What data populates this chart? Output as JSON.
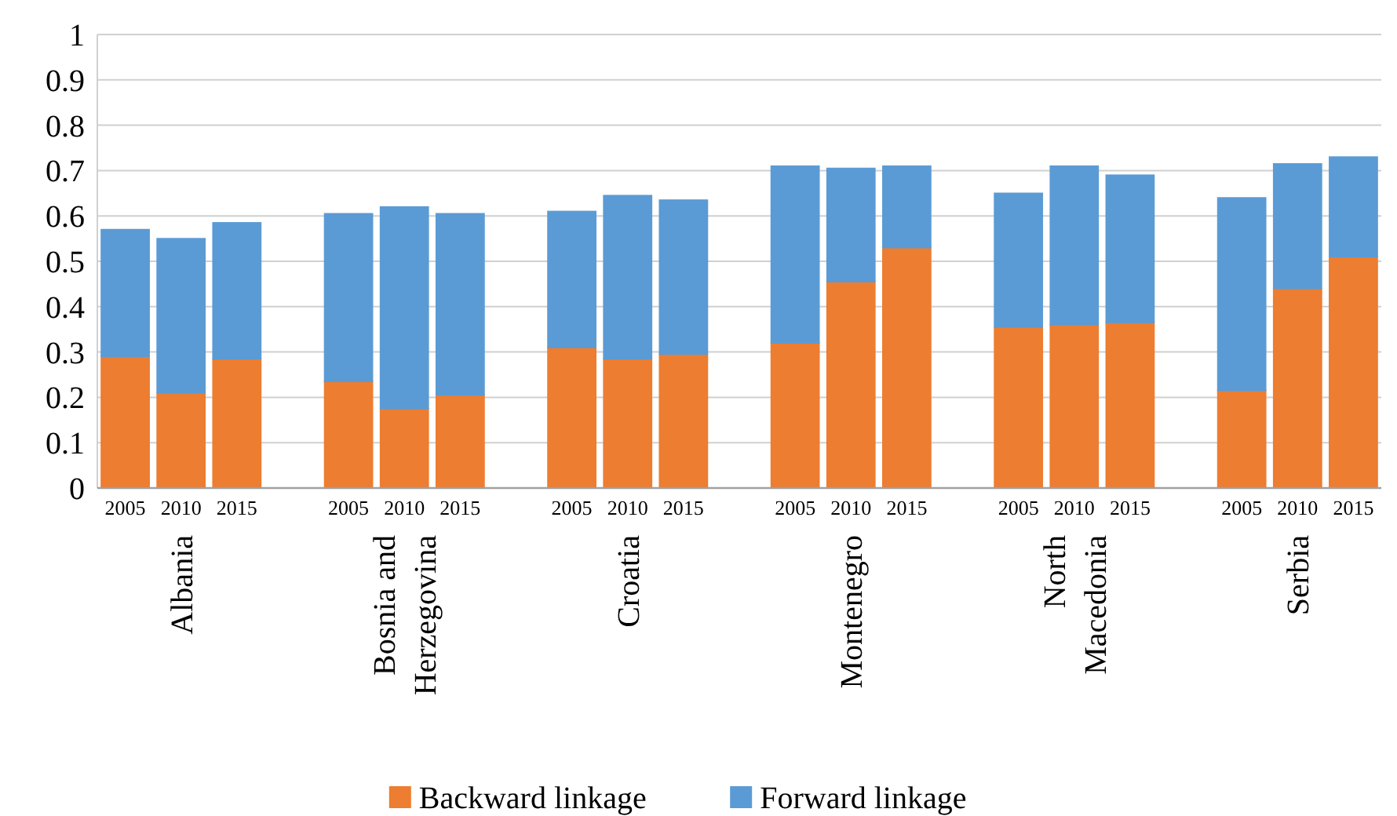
{
  "chart_data": {
    "type": "bar",
    "stacked": true,
    "categories": [
      "2005",
      "2010",
      "2015",
      null,
      "2005",
      "2010",
      "2015",
      null,
      "2005",
      "2010",
      "2015",
      null,
      "2005",
      "2010",
      "2015",
      null,
      "2005",
      "2010",
      "2015",
      null,
      "2005",
      "2010",
      "2015"
    ],
    "annotations": [
      "Albania",
      "Bosnia and\nHerzegovina",
      "Croatia",
      "Montenegro",
      "North\nMacedonia",
      "Serbia"
    ],
    "series": [
      {
        "name": "Backward linkage",
        "color": "#ed7d31",
        "values": [
          0.29,
          0.21,
          0.285,
          null,
          0.235,
          0.175,
          0.205,
          null,
          0.31,
          0.285,
          0.295,
          null,
          0.32,
          0.455,
          0.53,
          null,
          0.355,
          0.36,
          0.365,
          null,
          0.215,
          0.44,
          0.51
        ]
      },
      {
        "name": "Forward linkage",
        "color": "#5b9bd5",
        "values": [
          0.28,
          0.34,
          0.3,
          null,
          0.37,
          0.445,
          0.4,
          null,
          0.3,
          0.36,
          0.34,
          null,
          0.39,
          0.25,
          0.18,
          null,
          0.295,
          0.35,
          0.325,
          null,
          0.425,
          0.275,
          0.22
        ]
      }
    ],
    "ylim": [
      0,
      1
    ],
    "yticks": [
      0,
      0.1,
      0.2,
      0.3,
      0.4,
      0.5,
      0.6,
      0.7,
      0.8,
      0.9,
      1
    ],
    "grid": "y",
    "legend": "bottom"
  }
}
